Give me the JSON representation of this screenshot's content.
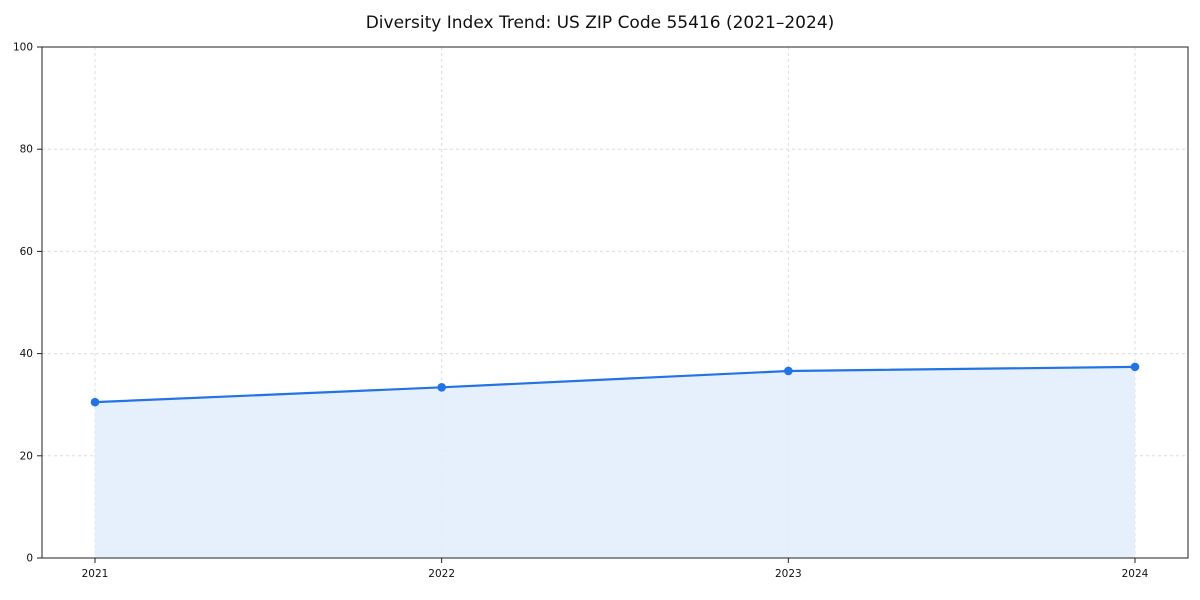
{
  "chart_data": {
    "type": "line",
    "title": "Diversity Index Trend: US ZIP Code 55416 (2021–2024)",
    "x": [
      2021,
      2022,
      2023,
      2024
    ],
    "x_tick_labels": [
      "2021",
      "2022",
      "2023",
      "2024"
    ],
    "series": [
      {
        "name": "Diversity Index",
        "values": [
          30.5,
          33.4,
          36.6,
          37.4
        ]
      }
    ],
    "xlabel": "",
    "ylabel": "",
    "ylim": [
      0,
      100
    ],
    "yticks": [
      0,
      20,
      40,
      60,
      80,
      100
    ],
    "grid": "dashed",
    "legend_position": "none",
    "line_color": "#2273e3",
    "marker_color": "#2273e3",
    "fill_color": "#e3edfc",
    "grid_color": "#dcdcdc",
    "axis_color": "#222222",
    "marker": "circle"
  }
}
